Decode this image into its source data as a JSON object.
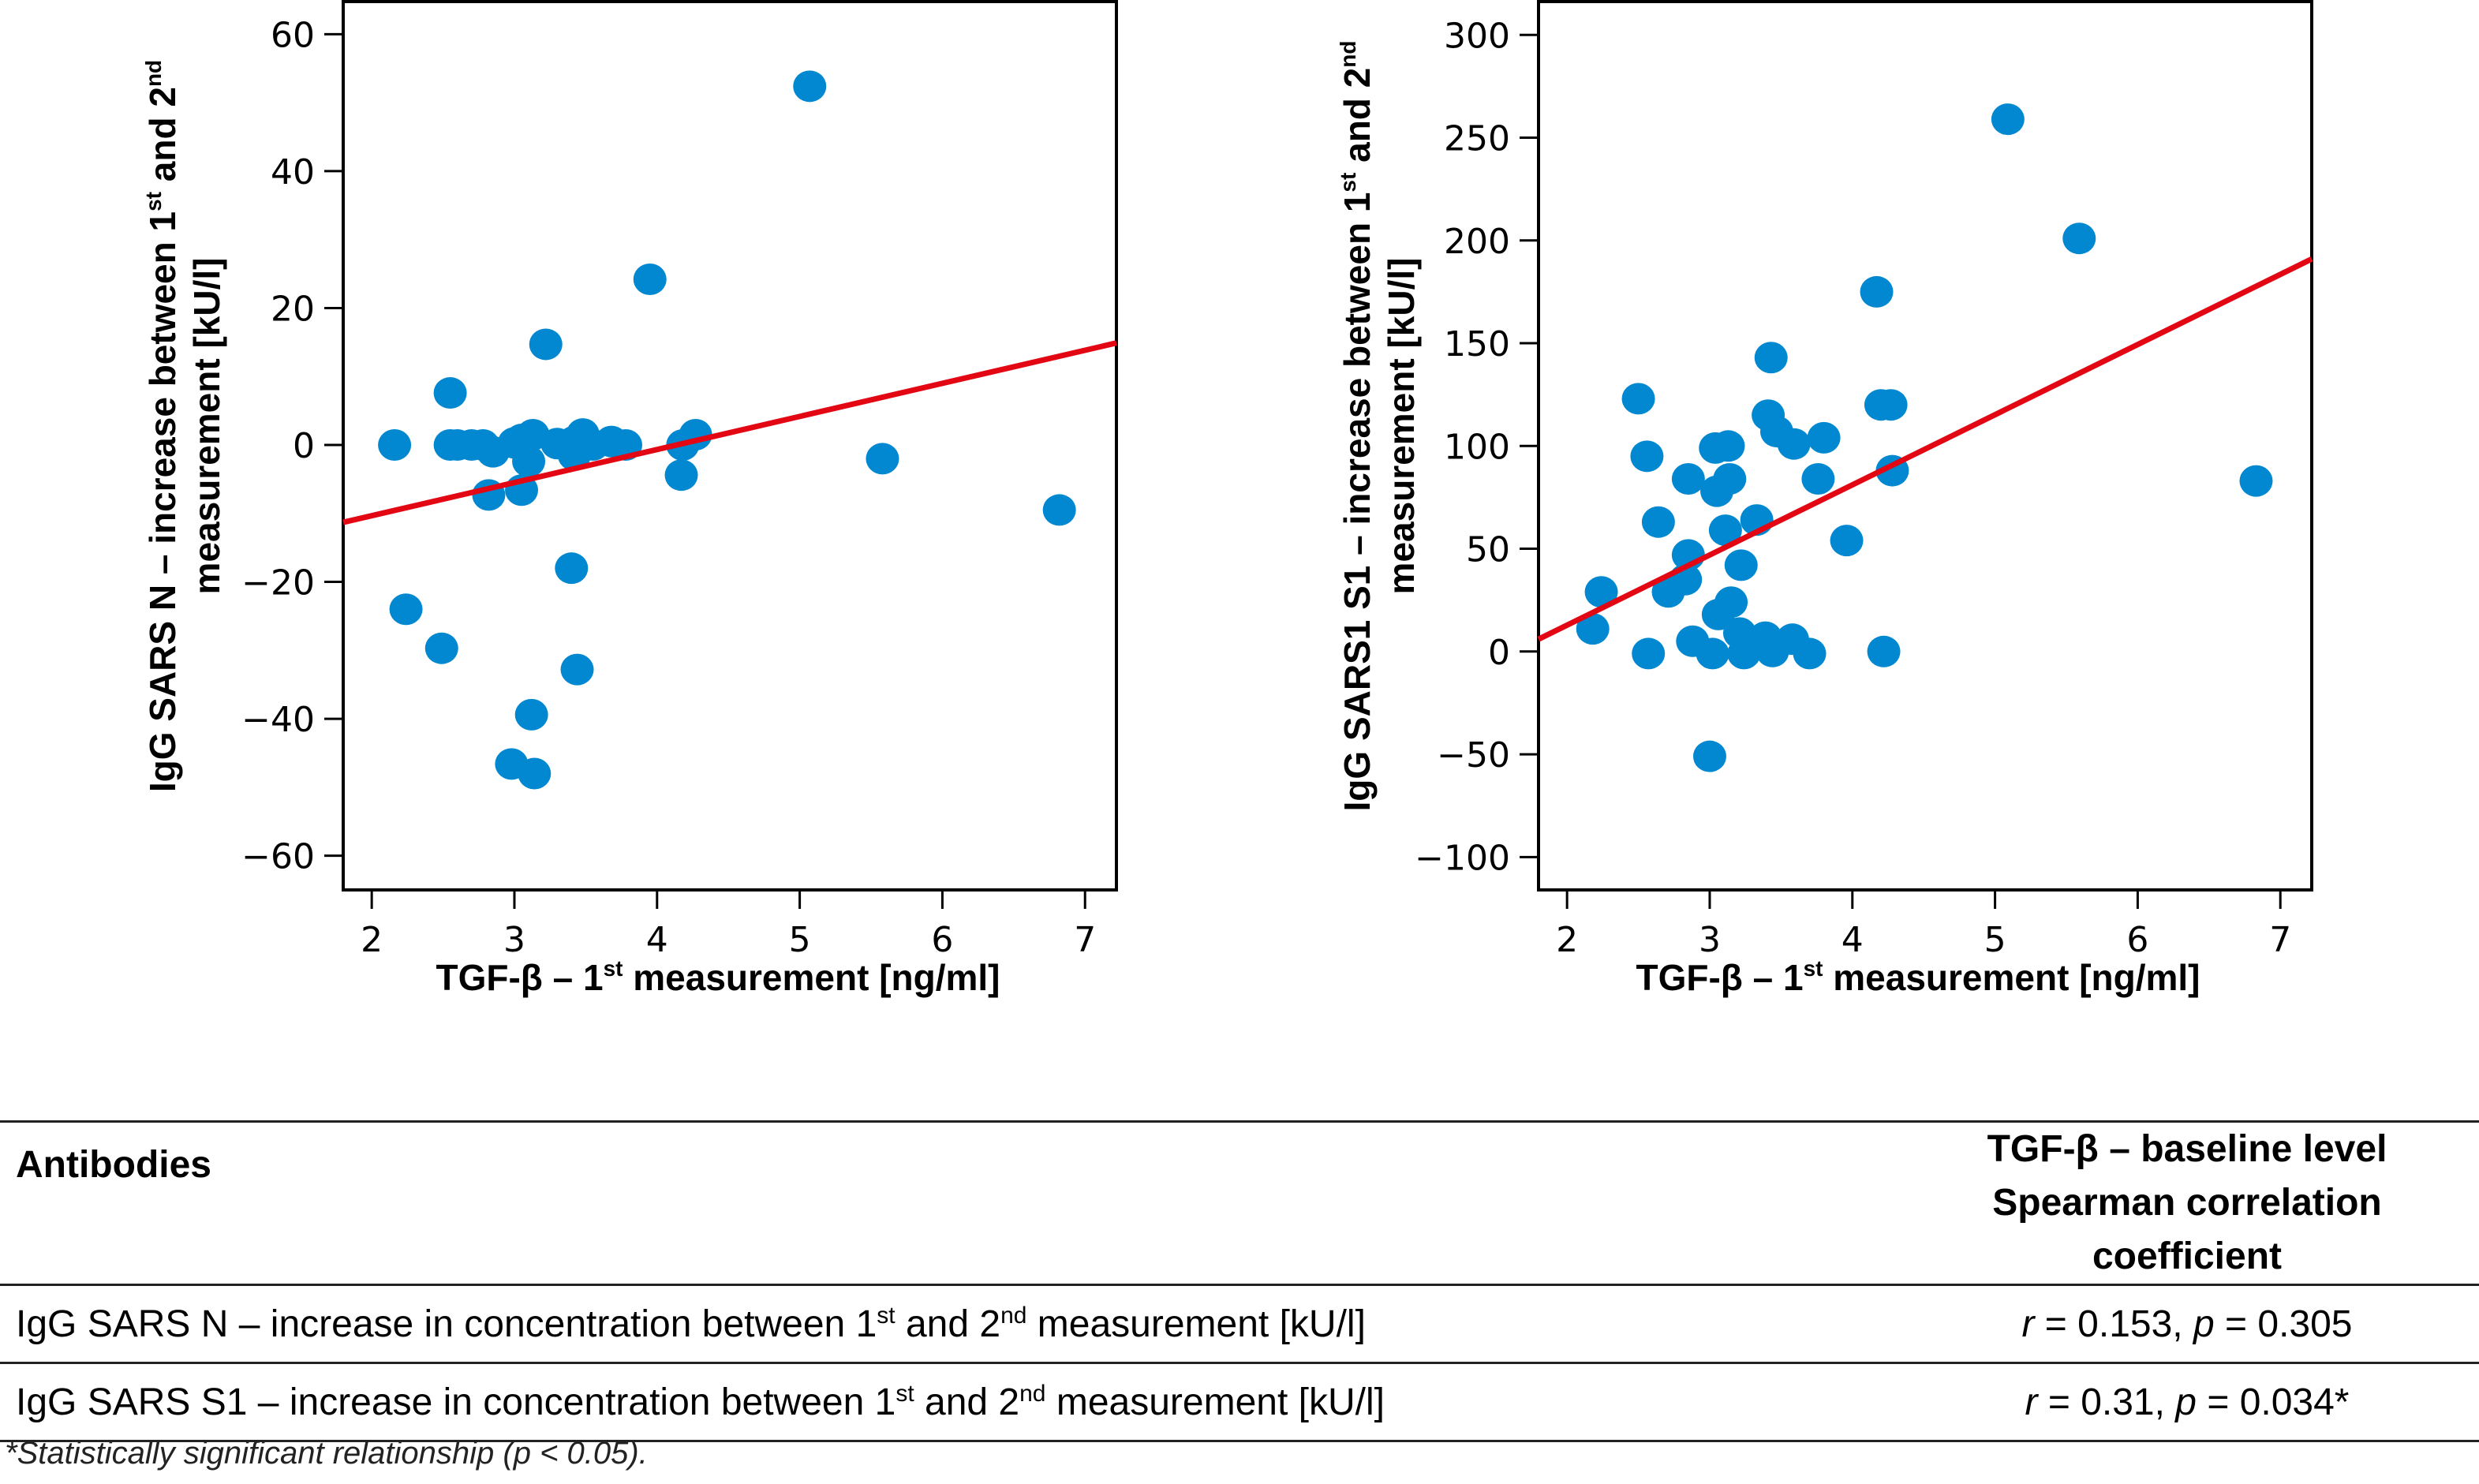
{
  "colors": {
    "dot": "#0288d1",
    "fit_line": "#e30613",
    "axis": "#000000"
  },
  "chart_data": [
    {
      "type": "scatter",
      "title": "",
      "xlabel": "TGF-β – 1st measurement [ng/ml]",
      "xlabel_parts": {
        "pre": "TGF-β – 1",
        "sup": "st",
        "post": " measurement [ng/ml]"
      },
      "ylabel_line1": {
        "pre": "IgG SARS N – increase between 1",
        "sup1": "st",
        "mid": " and 2",
        "sup2": "nd"
      },
      "ylabel_line2": "measurement [kU/l]",
      "ylabel": "IgG SARS N – increase between 1st and 2nd measurement [kU/l]",
      "xlim": [
        1.8,
        7.22
      ],
      "ylim": [
        -65,
        65
      ],
      "xticks": [
        2,
        3,
        4,
        5,
        6,
        7
      ],
      "yticks": [
        60,
        40,
        20,
        0,
        -20,
        -40,
        -60
      ],
      "ytick_labels": [
        "60",
        "40",
        "20",
        "0",
        "−20",
        "−40",
        "−60"
      ],
      "grid": false,
      "fit_line": {
        "x": [
          1.8,
          7.22
        ],
        "y": [
          -11.3,
          14.9
        ]
      },
      "points": [
        [
          5.07,
          52.4
        ],
        [
          3.95,
          24.2
        ],
        [
          3.22,
          14.7
        ],
        [
          2.55,
          7.6
        ],
        [
          2.16,
          0
        ],
        [
          2.55,
          0
        ],
        [
          2.6,
          0
        ],
        [
          2.7,
          0
        ],
        [
          2.78,
          0
        ],
        [
          2.85,
          -1
        ],
        [
          3.0,
          0.3
        ],
        [
          3.05,
          0.8
        ],
        [
          3.13,
          1.5
        ],
        [
          3.3,
          0.2
        ],
        [
          3.42,
          0.5
        ],
        [
          3.48,
          1.6
        ],
        [
          3.55,
          0
        ],
        [
          3.68,
          0.5
        ],
        [
          3.78,
          0
        ],
        [
          3.1,
          -2.4
        ],
        [
          3.42,
          -1.5
        ],
        [
          4.17,
          -4.4
        ],
        [
          4.18,
          0
        ],
        [
          4.27,
          1.5
        ],
        [
          5.58,
          -2.0
        ],
        [
          6.82,
          -9.5
        ],
        [
          2.82,
          -7.3
        ],
        [
          3.05,
          -6.6
        ],
        [
          3.4,
          -18
        ],
        [
          2.24,
          -24
        ],
        [
          2.49,
          -29.7
        ],
        [
          3.44,
          -32.8
        ],
        [
          3.12,
          -39.4
        ],
        [
          2.98,
          -46.6
        ],
        [
          3.14,
          -48
        ]
      ]
    },
    {
      "type": "scatter",
      "title": "",
      "xlabel": "TGF-β – 1st measurement [ng/ml]",
      "xlabel_parts": {
        "pre": "TGF-β – 1",
        "sup": "st",
        "post": " measurement [ng/ml]"
      },
      "ylabel_line1": {
        "pre": "IgG SARS1 S1 – increase between 1",
        "sup1": "st",
        "mid": " and 2",
        "sup2": "nd"
      },
      "ylabel_line2": "measurement [kU/l]",
      "ylabel": "IgG SARS1 S1 – increase between 1st and 2nd measurement [kU/l]",
      "xlim": [
        1.8,
        7.22
      ],
      "ylim": [
        -116,
        317
      ],
      "xticks": [
        2,
        3,
        4,
        5,
        6,
        7
      ],
      "yticks": [
        300,
        250,
        200,
        150,
        100,
        50,
        0,
        -50,
        -100
      ],
      "ytick_labels": [
        "300",
        "250",
        "200",
        "150",
        "100",
        "50",
        "0",
        "−50",
        "−100"
      ],
      "grid": false,
      "fit_line": {
        "x": [
          1.8,
          7.22
        ],
        "y": [
          6,
          191
        ]
      },
      "points": [
        [
          5.09,
          259
        ],
        [
          5.59,
          201
        ],
        [
          4.17,
          175
        ],
        [
          3.43,
          143
        ],
        [
          2.5,
          123
        ],
        [
          4.2,
          120
        ],
        [
          4.27,
          120
        ],
        [
          3.41,
          115
        ],
        [
          3.47,
          107
        ],
        [
          3.59,
          101
        ],
        [
          3.8,
          104
        ],
        [
          3.04,
          99
        ],
        [
          3.13,
          100
        ],
        [
          2.56,
          95
        ],
        [
          2.85,
          84
        ],
        [
          3.14,
          84
        ],
        [
          3.76,
          84
        ],
        [
          3.05,
          78
        ],
        [
          4.28,
          88
        ],
        [
          6.83,
          83
        ],
        [
          2.64,
          63
        ],
        [
          3.11,
          59
        ],
        [
          3.33,
          64
        ],
        [
          3.96,
          54
        ],
        [
          2.85,
          47
        ],
        [
          2.83,
          35
        ],
        [
          3.22,
          42
        ],
        [
          2.24,
          29
        ],
        [
          2.71,
          29
        ],
        [
          3.15,
          24
        ],
        [
          3.06,
          18
        ],
        [
          2.18,
          11
        ],
        [
          2.88,
          5
        ],
        [
          2.57,
          -1
        ],
        [
          3.02,
          -1
        ],
        [
          3.24,
          -1
        ],
        [
          3.21,
          9
        ],
        [
          3.39,
          7
        ],
        [
          3.44,
          0
        ],
        [
          3.58,
          6
        ],
        [
          3.7,
          -1
        ],
        [
          4.22,
          0
        ],
        [
          3.0,
          -51
        ]
      ]
    }
  ],
  "table": {
    "header": {
      "col1": "Antibodies",
      "col2_line1": "TGF-β – baseline level",
      "col2_line2": "Spearman correlation coefficient"
    },
    "rows": [
      {
        "label_pre": "IgG SARS N – increase in concentration between 1",
        "label_sup1": "st",
        "label_mid": " and 2",
        "label_sup2": "nd",
        "label_post": " measurement [kU/l]",
        "r_sym": "r",
        "r_val": " = 0.153, ",
        "p_sym": "p",
        "p_val": " = 0.305"
      },
      {
        "label_pre": "IgG SARS S1 – increase in concentration between 1",
        "label_sup1": "st",
        "label_mid": " and 2",
        "label_sup2": "nd",
        "label_post": " measurement [kU/l]",
        "r_sym": "r",
        "r_val": " = 0.31, ",
        "p_sym": "p",
        "p_val": " = 0.034*"
      }
    ],
    "footnote": "*Statistically significant relationship (p < 0.05)."
  }
}
